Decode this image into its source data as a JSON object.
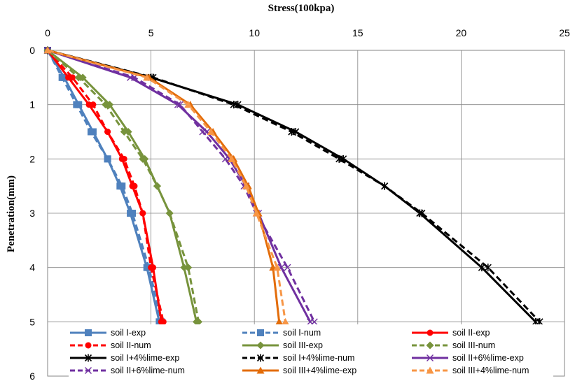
{
  "chart_data": {
    "type": "line",
    "xlabel": "Stress(100kpa)",
    "ylabel": "Penetration(mm)",
    "x_axis_position": "top",
    "y_axis_inverted": true,
    "xlim": [
      0,
      25
    ],
    "ylim": [
      0,
      6
    ],
    "x_ticks": [
      "0",
      "5",
      "10",
      "15",
      "20",
      "25"
    ],
    "y_ticks": [
      "0",
      "1",
      "2",
      "3",
      "4",
      "5",
      "6"
    ],
    "grid": true,
    "legend_position": "bottom",
    "series": [
      {
        "name": "soil I-exp",
        "color": "#4f81bd",
        "dash": false,
        "marker": "square",
        "points": [
          [
            0,
            0
          ],
          [
            0.8,
            0.5
          ],
          [
            1.5,
            1
          ],
          [
            2.2,
            1.5
          ],
          [
            2.9,
            2
          ],
          [
            3.5,
            2.5
          ],
          [
            4,
            3
          ],
          [
            4.8,
            4
          ],
          [
            5.4,
            5
          ]
        ]
      },
      {
        "name": "soil I-num",
        "color": "#4f81bd",
        "dash": true,
        "marker": "square",
        "points": [
          [
            0,
            0
          ],
          [
            0.7,
            0.5
          ],
          [
            1.4,
            1
          ],
          [
            2.1,
            1.5
          ],
          [
            2.9,
            2
          ],
          [
            3.6,
            2.5
          ],
          [
            4.1,
            3
          ],
          [
            4.9,
            4
          ],
          [
            5.5,
            5
          ]
        ]
      },
      {
        "name": "soil II-exp",
        "color": "#ff0000",
        "dash": false,
        "marker": "circle",
        "points": [
          [
            0,
            0
          ],
          [
            1.0,
            0.5
          ],
          [
            2.0,
            1
          ],
          [
            2.9,
            1.5
          ],
          [
            3.6,
            2
          ],
          [
            4.1,
            2.5
          ],
          [
            4.6,
            3
          ],
          [
            5.1,
            4
          ],
          [
            5.5,
            5
          ]
        ]
      },
      {
        "name": "soil II-num",
        "color": "#ff0000",
        "dash": true,
        "marker": "circle",
        "points": [
          [
            0,
            0
          ],
          [
            1.2,
            0.5
          ],
          [
            2.2,
            1
          ],
          [
            2.9,
            1.5
          ],
          [
            3.7,
            2
          ],
          [
            4.2,
            2.5
          ],
          [
            4.6,
            3
          ],
          [
            5.0,
            4
          ],
          [
            5.6,
            5
          ]
        ]
      },
      {
        "name": "soil III-exp",
        "color": "#77933c",
        "dash": false,
        "marker": "diamond",
        "points": [
          [
            0,
            0
          ],
          [
            1.7,
            0.5
          ],
          [
            3.0,
            1
          ],
          [
            3.9,
            1.5
          ],
          [
            4.7,
            2
          ],
          [
            5.3,
            2.5
          ],
          [
            5.9,
            3
          ],
          [
            6.6,
            4
          ],
          [
            7.2,
            5
          ]
        ]
      },
      {
        "name": "soil III-num",
        "color": "#77933c",
        "dash": true,
        "marker": "diamond",
        "points": [
          [
            0,
            0
          ],
          [
            1.5,
            0.5
          ],
          [
            2.8,
            1
          ],
          [
            3.7,
            1.5
          ],
          [
            4.6,
            2
          ],
          [
            5.3,
            2.5
          ],
          [
            5.9,
            3
          ],
          [
            6.8,
            4
          ],
          [
            7.3,
            5
          ]
        ]
      },
      {
        "name": "soil I+4%lime-exp",
        "color": "#000000",
        "dash": false,
        "marker": "asterisk",
        "points": [
          [
            0,
            0
          ],
          [
            5.0,
            0.5
          ],
          [
            9.2,
            1
          ],
          [
            12.0,
            1.5
          ],
          [
            14.3,
            2
          ],
          [
            16.3,
            2.5
          ],
          [
            18.0,
            3
          ],
          [
            21.0,
            4
          ],
          [
            23.6,
            5
          ]
        ]
      },
      {
        "name": "soil I+4%lime-num",
        "color": "#000000",
        "dash": true,
        "marker": "star",
        "points": [
          [
            0,
            0
          ],
          [
            5.1,
            0.5
          ],
          [
            9.0,
            1
          ],
          [
            11.8,
            1.5
          ],
          [
            14.1,
            2
          ],
          [
            16.3,
            2.5
          ],
          [
            18.1,
            3
          ],
          [
            21.3,
            4
          ],
          [
            23.8,
            5
          ]
        ]
      },
      {
        "name": "soil II+6%lime-exp",
        "color": "#7030a0",
        "dash": false,
        "marker": "x",
        "points": [
          [
            0,
            0
          ],
          [
            4.0,
            0.5
          ],
          [
            6.3,
            1
          ],
          [
            7.7,
            1.5
          ],
          [
            8.8,
            2
          ],
          [
            9.6,
            2.5
          ],
          [
            10.2,
            3
          ],
          [
            11.3,
            4
          ],
          [
            12.7,
            5
          ]
        ]
      },
      {
        "name": "soil II+6%lime-num",
        "color": "#7030a0",
        "dash": true,
        "marker": "x",
        "points": [
          [
            0,
            0
          ],
          [
            4.2,
            0.5
          ],
          [
            6.4,
            1
          ],
          [
            7.5,
            1.5
          ],
          [
            8.6,
            2
          ],
          [
            9.5,
            2.5
          ],
          [
            10.1,
            3
          ],
          [
            11.6,
            4
          ],
          [
            12.9,
            5
          ]
        ]
      },
      {
        "name": "soil III+4%lime-exp",
        "color": "#e36c09",
        "dash": false,
        "marker": "triangle",
        "points": [
          [
            0,
            0
          ],
          [
            4.9,
            0.5
          ],
          [
            6.9,
            1
          ],
          [
            8.0,
            1.5
          ],
          [
            9.0,
            2
          ],
          [
            9.7,
            2.5
          ],
          [
            10.2,
            3
          ],
          [
            10.9,
            4
          ],
          [
            11.2,
            5
          ]
        ]
      },
      {
        "name": "soil III+4%lime-num",
        "color": "#f79646",
        "dash": true,
        "marker": "triangle",
        "points": [
          [
            0,
            0
          ],
          [
            4.8,
            0.5
          ],
          [
            6.8,
            1
          ],
          [
            7.9,
            1.5
          ],
          [
            8.9,
            2
          ],
          [
            9.6,
            2.5
          ],
          [
            10.1,
            3
          ],
          [
            11.1,
            4
          ],
          [
            11.5,
            5
          ]
        ]
      }
    ]
  }
}
